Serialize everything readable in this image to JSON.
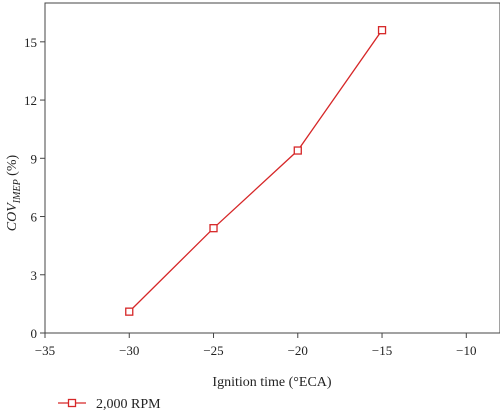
{
  "chart_data": {
    "type": "line",
    "xlabel": "Ignition time (°ECA)",
    "ylabel": {
      "prefix": "COV",
      "subscript": "IMEP",
      "suffix": " (%)"
    },
    "xlim": [
      -35,
      -8
    ],
    "ylim": [
      0,
      17
    ],
    "xticks": [
      -35,
      -30,
      -25,
      -20,
      -15,
      -10
    ],
    "yticks": [
      0,
      3,
      6,
      9,
      12,
      15
    ],
    "grid": false,
    "legend_position": "bottom-left",
    "series": [
      {
        "name": "2,000 RPM",
        "color": "#d62728",
        "marker": "open-square",
        "x": [
          -30,
          -25,
          -20,
          -15
        ],
        "y": [
          1.1,
          5.4,
          9.4,
          15.6
        ]
      }
    ]
  }
}
